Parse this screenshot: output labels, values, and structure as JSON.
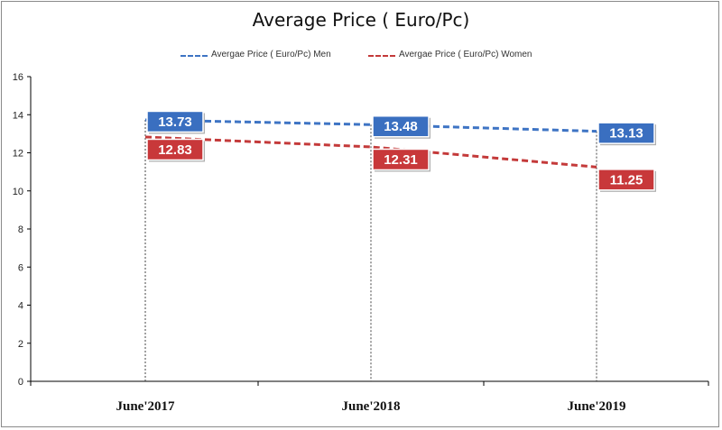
{
  "chart_data": {
    "type": "line",
    "title": "Average Price ( Euro/Pc)",
    "categories": [
      "June'2017",
      "June'2018",
      "June'2019"
    ],
    "series": [
      {
        "name": "Avergae Price ( Euro/Pc) Men",
        "values": [
          13.73,
          13.48,
          13.13
        ],
        "color": "#3e74c4",
        "label_color": "#3a6fc0"
      },
      {
        "name": "Avergae Price ( Euro/Pc) Women",
        "values": [
          12.83,
          12.31,
          11.25
        ],
        "color": "#c43a3a",
        "label_color": "#c8383a"
      }
    ],
    "y_ticks": [
      "0",
      "2",
      "4",
      "6",
      "8",
      "10",
      "12",
      "14",
      "16"
    ],
    "ylim": [
      0,
      16
    ],
    "grid": false,
    "drop_lines": true,
    "legend": "top-center",
    "line_style": "dashed"
  }
}
